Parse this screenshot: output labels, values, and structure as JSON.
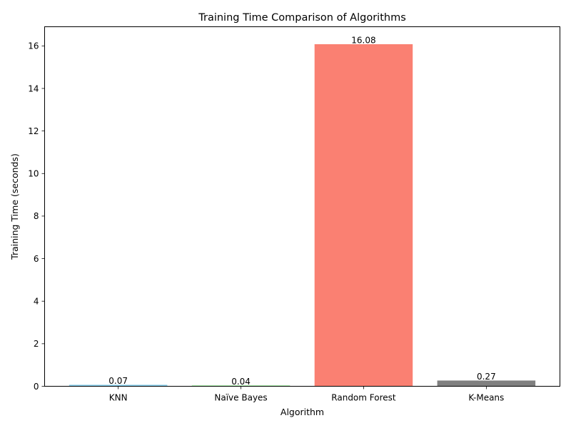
{
  "chart_data": {
    "type": "bar",
    "title": "Training Time Comparison of Algorithms",
    "xlabel": "Algorithm",
    "ylabel": "Training Time (seconds)",
    "categories": [
      "KNN",
      "Naïve Bayes",
      "Random Forest",
      "K-Means"
    ],
    "values": [
      0.07,
      0.04,
      16.08,
      0.27
    ],
    "value_labels": [
      "0.07",
      "0.04",
      "16.08",
      "0.27"
    ],
    "colors": [
      "#87ceeb",
      "#90ee90",
      "#fa8072",
      "#808080"
    ],
    "ylim": [
      0,
      16.9
    ],
    "yticks": [
      0,
      2,
      4,
      6,
      8,
      10,
      12,
      14,
      16
    ],
    "ytick_labels": [
      "0",
      "2",
      "4",
      "6",
      "8",
      "10",
      "12",
      "14",
      "16"
    ],
    "grid": false,
    "legend": false
  }
}
